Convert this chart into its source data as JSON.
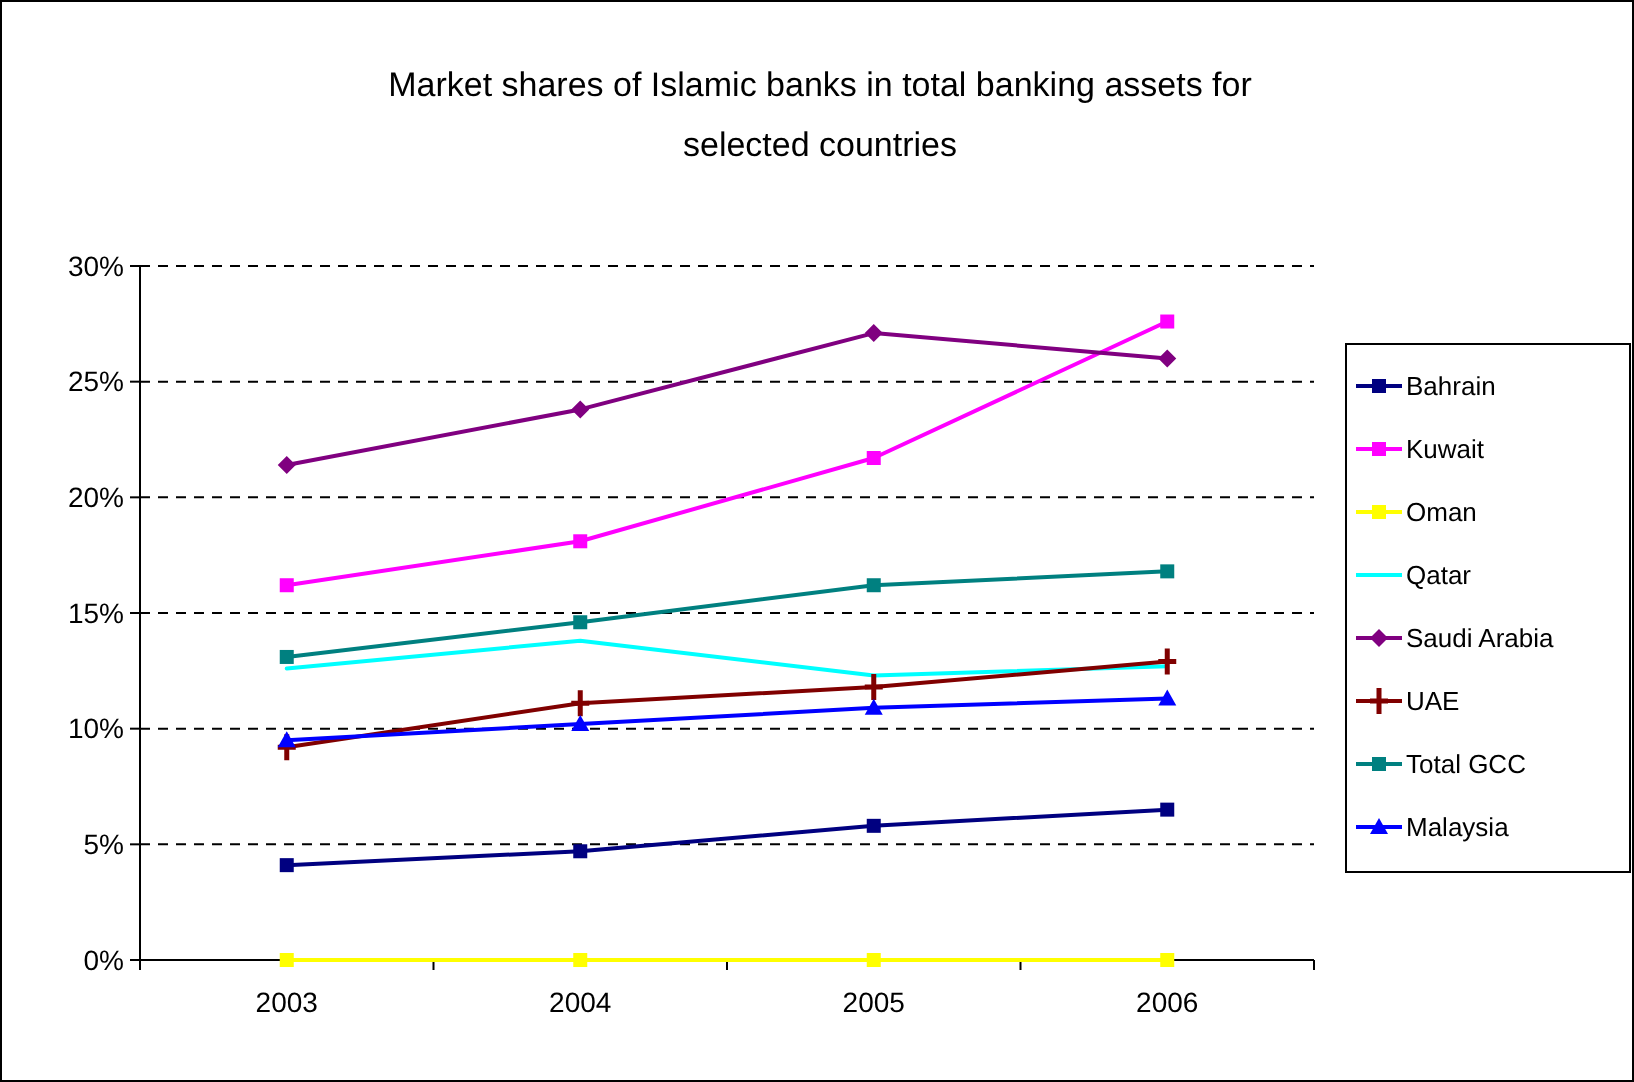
{
  "chart_data": {
    "type": "line",
    "title": "Market shares of Islamic banks in total banking assets for selected countries",
    "categories": [
      "2003",
      "2004",
      "2005",
      "2006"
    ],
    "ylim": [
      0,
      30
    ],
    "yticks": [
      {
        "value": 0,
        "label": "0%"
      },
      {
        "value": 5,
        "label": "5%"
      },
      {
        "value": 10,
        "label": "10%"
      },
      {
        "value": 15,
        "label": "15%"
      },
      {
        "value": 20,
        "label": "20%"
      },
      {
        "value": 25,
        "label": "25%"
      },
      {
        "value": 30,
        "label": "30%"
      }
    ],
    "grid": "y",
    "legend": "right",
    "line_style": "solid",
    "series": [
      {
        "name": "Bahrain",
        "color": "#000080",
        "marker": "square",
        "values": [
          4.1,
          4.7,
          5.8,
          6.5
        ]
      },
      {
        "name": "Kuwait",
        "color": "#ff00ff",
        "marker": "square",
        "values": [
          16.2,
          18.1,
          21.7,
          27.6
        ]
      },
      {
        "name": "Oman",
        "color": "#ffff00",
        "marker": "square",
        "values": [
          0,
          0,
          0,
          0
        ]
      },
      {
        "name": "Qatar",
        "color": "#00ffff",
        "marker": "none",
        "values": [
          12.6,
          13.8,
          12.3,
          12.7
        ]
      },
      {
        "name": "Saudi Arabia",
        "color": "#800080",
        "marker": "diamond",
        "values": [
          21.4,
          23.8,
          27.1,
          26.0
        ]
      },
      {
        "name": "UAE",
        "color": "#800000",
        "marker": "cross",
        "values": [
          9.2,
          11.1,
          11.8,
          12.9
        ]
      },
      {
        "name": "Total GCC",
        "color": "#008080",
        "marker": "square",
        "values": [
          13.1,
          14.6,
          16.2,
          16.8
        ]
      },
      {
        "name": "Malaysia",
        "color": "#0000ff",
        "marker": "triangle",
        "values": [
          9.5,
          10.2,
          10.9,
          11.3
        ]
      }
    ]
  }
}
